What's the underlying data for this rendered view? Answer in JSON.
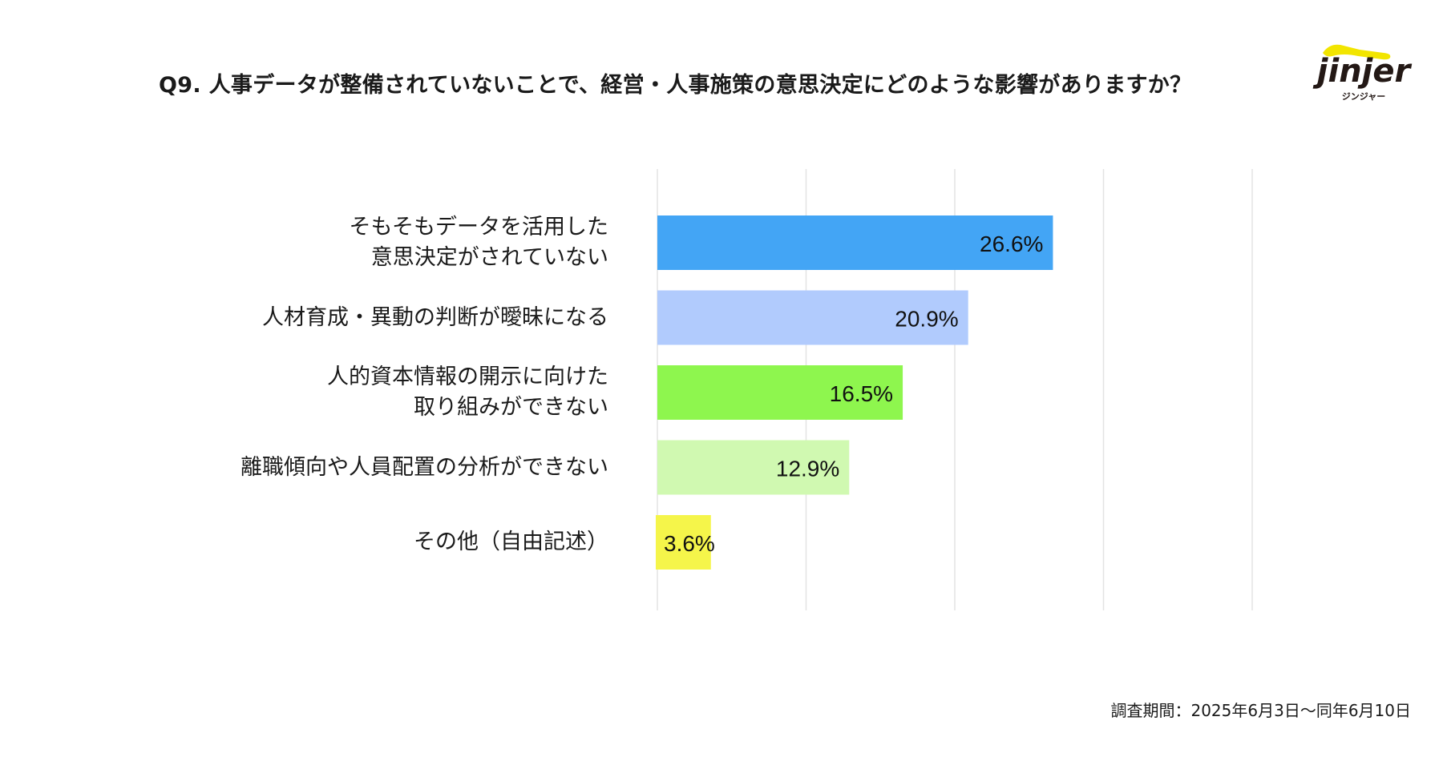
{
  "title": "Q9. 人事データが整備されていないことで、経営・人事施策の意思決定にどのような影響がありますか？",
  "logo": {
    "text": "jinjer",
    "subtext": "ジンジャー",
    "accent": "#f2e500"
  },
  "footer": "調査期間：2025年6月3日〜同年6月10日",
  "chart_data": {
    "type": "bar",
    "orientation": "horizontal",
    "title": "Q9. 人事データが整備されていないことで、経営・人事施策の意思決定にどのような影響がありますか？",
    "categories": [
      "そもそもデータを活用した\n意思決定がされていない",
      "人材育成・異動の判断が曖昧になる",
      "人的資本情報の開示に向けた\n取り組みができない",
      "離職傾向や人員配置の分析ができない",
      "その他（自由記述）"
    ],
    "values": [
      26.6,
      20.9,
      16.5,
      12.9,
      3.6
    ],
    "value_labels": [
      "26.6%",
      "20.9%",
      "16.5%",
      "12.9%",
      "3.6%"
    ],
    "colors": [
      "#43a5f5",
      "#b1cbfd",
      "#8ef64e",
      "#d0f9b1",
      "#f5f54a"
    ],
    "xlim": [
      0,
      40
    ],
    "gridlines": [
      0,
      10,
      20,
      30,
      40
    ],
    "grid": true,
    "xlabel": "",
    "ylabel": ""
  }
}
